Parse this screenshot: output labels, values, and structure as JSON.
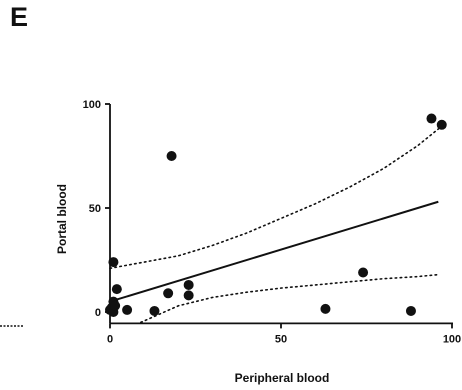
{
  "panel_letter": "E",
  "chart_data": {
    "type": "scatter",
    "title": "",
    "xlabel": "Peripheral blood",
    "ylabel": "Portal blood",
    "xlim": [
      0,
      100
    ],
    "ylim": [
      -5,
      100
    ],
    "x_ticks": [
      "0",
      "50",
      "100"
    ],
    "y_ticks": [
      "0",
      "50",
      "100"
    ],
    "grid": false,
    "legend": "none",
    "point_color": "#111111",
    "points": [
      {
        "x": 0,
        "y": 1
      },
      {
        "x": 0.5,
        "y": 2
      },
      {
        "x": 1,
        "y": 5
      },
      {
        "x": 1,
        "y": 0
      },
      {
        "x": 1,
        "y": 24
      },
      {
        "x": 1.5,
        "y": 3
      },
      {
        "x": 2,
        "y": 11
      },
      {
        "x": 5,
        "y": 1
      },
      {
        "x": 13,
        "y": 0.5
      },
      {
        "x": 17,
        "y": 9
      },
      {
        "x": 18,
        "y": 75
      },
      {
        "x": 23,
        "y": 13
      },
      {
        "x": 23,
        "y": 8
      },
      {
        "x": 63,
        "y": 1.5
      },
      {
        "x": 74,
        "y": 19
      },
      {
        "x": 88,
        "y": 0.5
      },
      {
        "x": 94,
        "y": 93
      },
      {
        "x": 97,
        "y": 90
      }
    ],
    "regression_line": {
      "x": [
        0,
        96
      ],
      "y": [
        5,
        53
      ]
    },
    "confidence_band_upper": {
      "x": [
        0,
        10,
        20,
        30,
        40,
        50,
        60,
        70,
        80,
        90,
        96
      ],
      "y": [
        21,
        24,
        27,
        32,
        38,
        45,
        52,
        60,
        69,
        80,
        88
      ]
    },
    "confidence_band_lower": {
      "x": [
        9,
        20,
        30,
        40,
        50,
        60,
        70,
        80,
        90,
        96
      ],
      "y": [
        -5,
        3,
        7,
        9.5,
        11.5,
        13,
        14.5,
        16,
        17,
        18
      ]
    }
  }
}
